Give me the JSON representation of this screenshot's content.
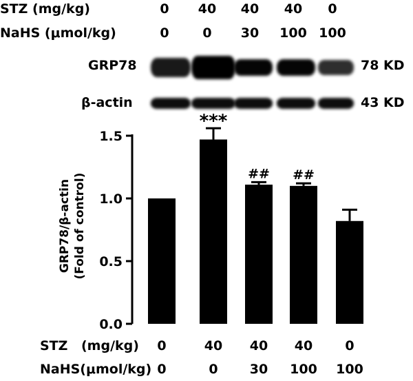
{
  "top_labels": {
    "stz_label": "STZ (mg/kg)",
    "nahs_label": "NaHS (μmol/kg)",
    "stz_values": [
      "0",
      "40",
      "40",
      "40",
      "0"
    ],
    "nahs_values": [
      "0",
      "0",
      "30",
      "100",
      "100"
    ]
  },
  "blot": {
    "rows": [
      {
        "name": "GRP78",
        "kd": "78 KD",
        "band_intensity": [
          0.7,
          1.0,
          0.78,
          0.78,
          0.62
        ]
      },
      {
        "name": "β-actin",
        "kd": "43 KD",
        "band_intensity": [
          0.75,
          0.75,
          0.75,
          0.75,
          0.75
        ]
      }
    ]
  },
  "bottom_labels": {
    "stz_label": "STZ",
    "stz_unit": "(mg/kg)",
    "nahs_label": "NaHS(μmol/kg)",
    "stz_values": [
      "0",
      "40",
      "40",
      "40",
      "0"
    ],
    "nahs_values": [
      "0",
      "0",
      "30",
      "100",
      "100"
    ]
  },
  "chart_data": {
    "type": "bar",
    "ylabel_line1": "GRP78/β-actin",
    "ylabel_line2": "(Fold of control)",
    "ylim": [
      0,
      1.5
    ],
    "yticks": [
      "0.0",
      "0.5",
      "1.0",
      "1.5"
    ],
    "ytick_values": [
      0,
      0.5,
      1.0,
      1.5
    ],
    "values": [
      1.0,
      1.47,
      1.11,
      1.1,
      0.82
    ],
    "errors": [
      0.0,
      0.09,
      0.02,
      0.02,
      0.09
    ],
    "annotations": [
      "",
      "***",
      "##",
      "##",
      ""
    ],
    "bar_color": "#000000"
  }
}
